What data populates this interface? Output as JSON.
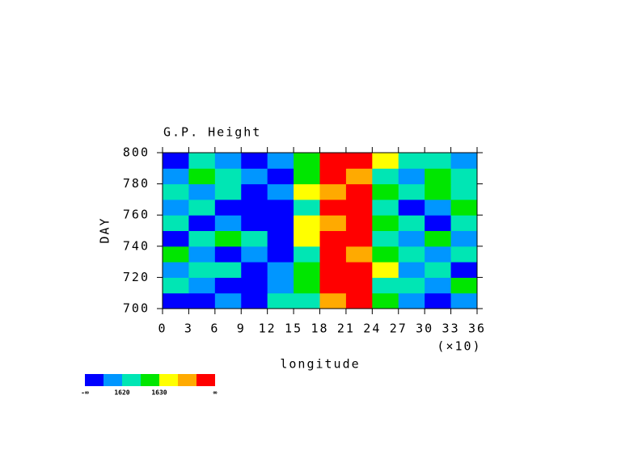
{
  "chart_data": {
    "type": "heatmap",
    "title": "G.P. Height",
    "x_label": "longitude",
    "x_multiplier": "(×10)",
    "y_label": "DAY",
    "x": [
      15,
      45,
      75,
      105,
      135,
      165,
      195,
      225,
      255,
      285,
      315,
      345
    ],
    "y": [
      705,
      715,
      725,
      735,
      745,
      755,
      765,
      775,
      785,
      795
    ],
    "z": [
      [
        1612,
        1614,
        1618,
        1612,
        1620,
        1624,
        1638,
        1644,
        1628,
        1616,
        1614,
        1618
      ],
      [
        1622,
        1616,
        1612,
        1614,
        1618,
        1626,
        1642,
        1640,
        1624,
        1620,
        1616,
        1626
      ],
      [
        1618,
        1624,
        1620,
        1612,
        1616,
        1628,
        1640,
        1646,
        1630,
        1618,
        1622,
        1614
      ],
      [
        1626,
        1618,
        1614,
        1616,
        1612,
        1622,
        1644,
        1636,
        1626,
        1624,
        1618,
        1620
      ],
      [
        1614,
        1620,
        1626,
        1622,
        1614,
        1630,
        1646,
        1642,
        1622,
        1616,
        1626,
        1618
      ],
      [
        1620,
        1612,
        1618,
        1614,
        1612,
        1632,
        1638,
        1644,
        1628,
        1620,
        1614,
        1624
      ],
      [
        1616,
        1622,
        1612,
        1610,
        1612,
        1624,
        1642,
        1646,
        1620,
        1612,
        1618,
        1628
      ],
      [
        1624,
        1618,
        1620,
        1614,
        1616,
        1634,
        1636,
        1642,
        1626,
        1622,
        1628,
        1620
      ],
      [
        1618,
        1626,
        1622,
        1618,
        1612,
        1628,
        1644,
        1638,
        1624,
        1616,
        1626,
        1622
      ],
      [
        1612,
        1620,
        1616,
        1614,
        1618,
        1626,
        1646,
        1644,
        1630,
        1622,
        1620,
        1616
      ]
    ],
    "xlim": [
      0,
      360
    ],
    "xticks": [
      {
        "value": 0,
        "label": "0"
      },
      {
        "value": 30,
        "label": "3"
      },
      {
        "value": 60,
        "label": "6"
      },
      {
        "value": 90,
        "label": "9"
      },
      {
        "value": 120,
        "label": "12"
      },
      {
        "value": 150,
        "label": "15"
      },
      {
        "value": 180,
        "label": "18"
      },
      {
        "value": 210,
        "label": "21"
      },
      {
        "value": 240,
        "label": "24"
      },
      {
        "value": 270,
        "label": "27"
      },
      {
        "value": 300,
        "label": "30"
      },
      {
        "value": 330,
        "label": "33"
      },
      {
        "value": 360,
        "label": "36"
      }
    ],
    "ylim": [
      700,
      800
    ],
    "yticks": [
      700,
      720,
      740,
      760,
      780,
      800
    ],
    "colorbar": {
      "colors": [
        "#0000ff",
        "#0096ff",
        "#00e6b4",
        "#00e600",
        "#ffff00",
        "#ffaa00",
        "#ff0000"
      ],
      "levels": [
        1615,
        1620,
        1625,
        1630,
        1635,
        1640
      ],
      "ticks": [
        1620,
        1630
      ],
      "low_label": "-∞",
      "high_label": "∞"
    }
  }
}
